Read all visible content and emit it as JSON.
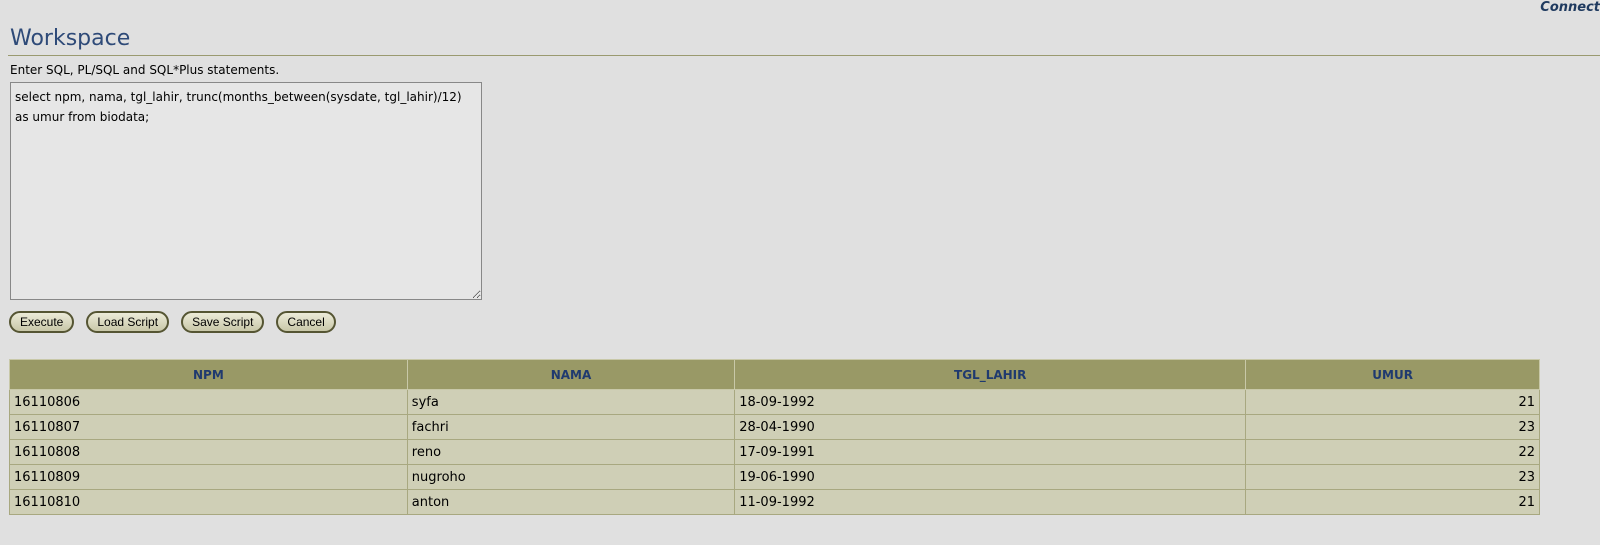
{
  "header": {
    "connect_link": "Connect",
    "title": "Workspace",
    "instructions": "Enter SQL, PL/SQL and SQL*Plus statements."
  },
  "editor": {
    "value": "select npm, nama, tgl_lahir, trunc(months_between(sysdate, tgl_lahir)/12) as umur from biodata;"
  },
  "buttons": {
    "execute": "Execute",
    "load": "Load Script",
    "save": "Save Script",
    "cancel": "Cancel"
  },
  "results": {
    "columns": [
      "NPM",
      "NAMA",
      "TGL_LAHIR",
      "UMUR"
    ],
    "rows": [
      [
        "16110806",
        "syfa",
        "18-09-1992",
        "21"
      ],
      [
        "16110807",
        "fachri",
        "28-04-1990",
        "23"
      ],
      [
        "16110808",
        "reno",
        "17-09-1991",
        "22"
      ],
      [
        "16110809",
        "nugroho",
        "19-06-1990",
        "23"
      ],
      [
        "16110810",
        "anton",
        "11-09-1992",
        "21"
      ]
    ]
  }
}
